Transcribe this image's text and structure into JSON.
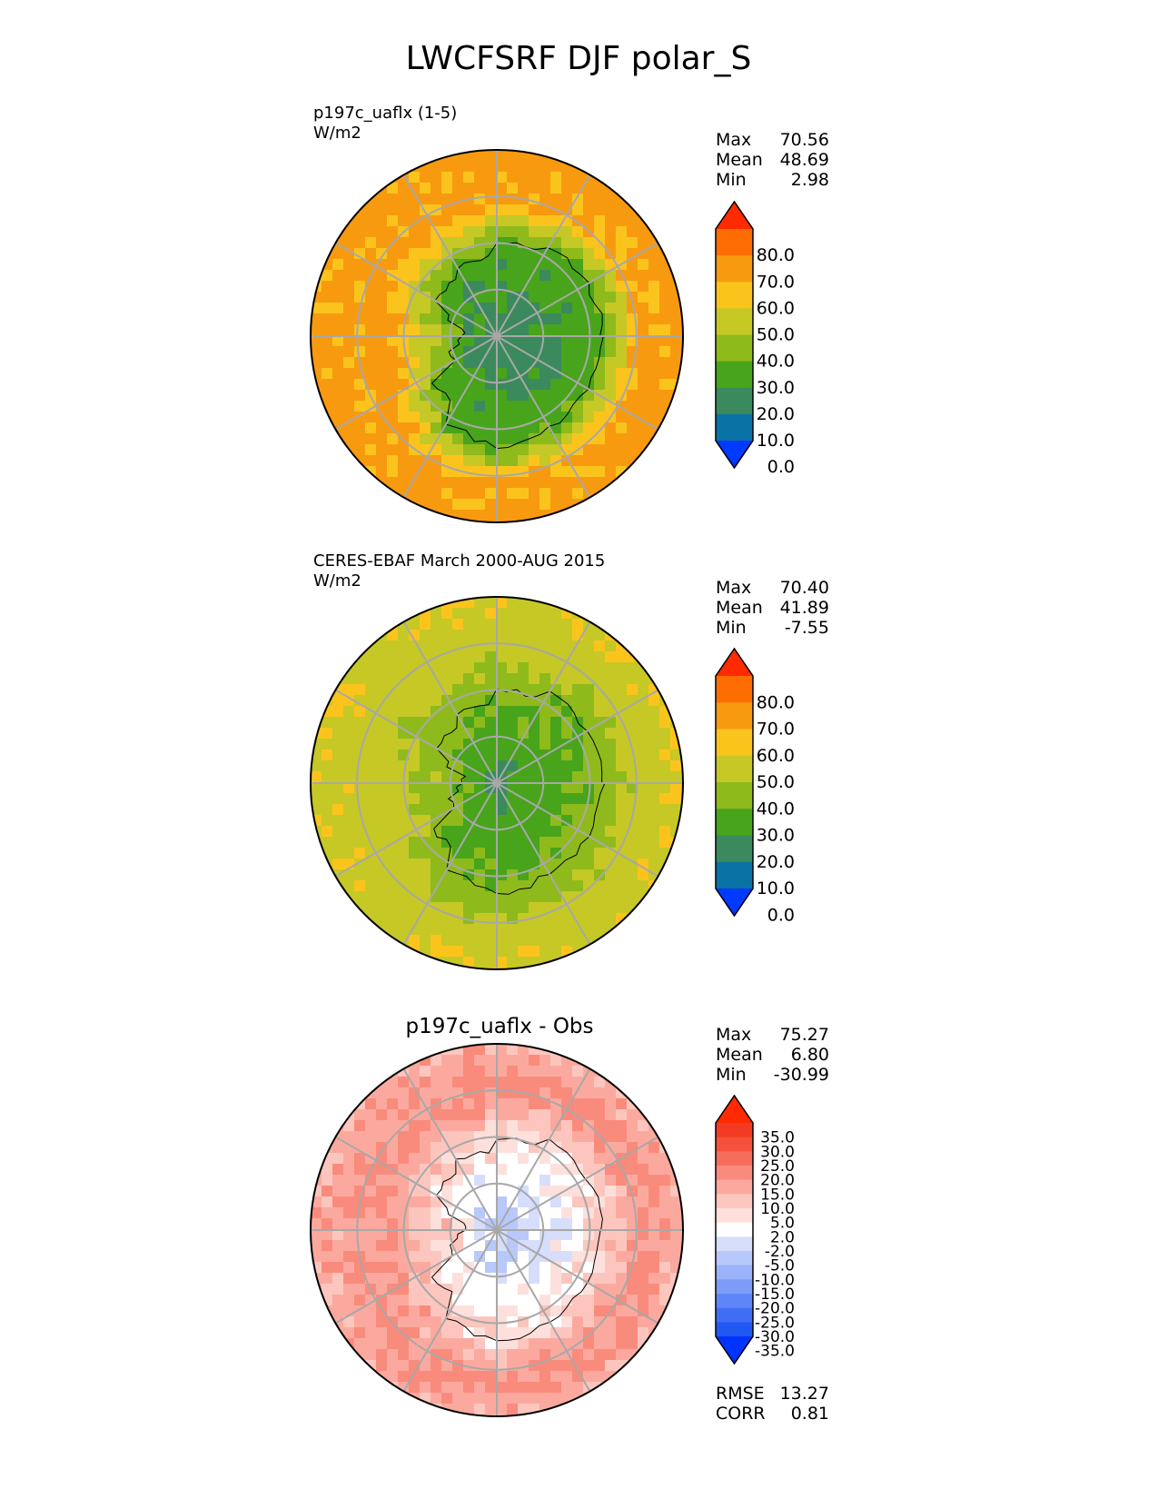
{
  "figure": {
    "title": "LWCFSRF DJF polar_S"
  },
  "chart_data": [
    {
      "type": "heatmap",
      "projection": "south-polar-stereographic",
      "title_left": "p197c_uaflx (1-5)",
      "units": "W/m2",
      "stats": [
        {
          "label": "Max",
          "value": "70.56"
        },
        {
          "label": "Mean",
          "value": "48.69"
        },
        {
          "label": "Min",
          "value": "2.98"
        }
      ],
      "colorbar": {
        "extend": "both",
        "levels": [
          -10,
          0,
          10,
          20,
          30,
          40,
          50,
          60,
          70,
          80,
          90
        ],
        "tick_labels": [
          "80.0",
          "70.0",
          "60.0",
          "50.0",
          "40.0",
          "30.0",
          "20.0",
          "10.0",
          "0.0"
        ],
        "colors": [
          "#0039ff",
          "#0b72a6",
          "#3b8a5d",
          "#48a41a",
          "#8fba1c",
          "#c6c826",
          "#fbc41c",
          "#f89a10",
          "#fd6d04",
          "#ff2a00"
        ]
      },
      "field": {
        "pole": 12,
        "coast": 27,
        "ocean": 62,
        "far": 64
      }
    },
    {
      "type": "heatmap",
      "projection": "south-polar-stereographic",
      "title_left": "CERES-EBAF March 2000-AUG 2015",
      "units": "W/m2",
      "stats": [
        {
          "label": "Max",
          "value": "70.40"
        },
        {
          "label": "Mean",
          "value": "41.89"
        },
        {
          "label": "Min",
          "value": "-7.55"
        }
      ],
      "colorbar": {
        "extend": "both",
        "levels": [
          -10,
          0,
          10,
          20,
          30,
          40,
          50,
          60,
          70,
          80,
          90
        ],
        "tick_labels": [
          "80.0",
          "70.0",
          "60.0",
          "50.0",
          "40.0",
          "30.0",
          "20.0",
          "10.0",
          "0.0"
        ],
        "colors": [
          "#0039ff",
          "#0b72a6",
          "#3b8a5d",
          "#48a41a",
          "#8fba1c",
          "#c6c826",
          "#fbc41c",
          "#f89a10",
          "#fd6d04",
          "#ff2a00"
        ]
      },
      "field": {
        "pole": 18,
        "coast": 33,
        "ocean": 45,
        "far": 55
      }
    },
    {
      "type": "heatmap",
      "projection": "south-polar-stereographic",
      "title_center": "p197c_uaflx - Obs",
      "stats": [
        {
          "label": "Max",
          "value": "75.27"
        },
        {
          "label": "Mean",
          "value": "6.80"
        },
        {
          "label": "Min",
          "value": "-30.99"
        }
      ],
      "colorbar": {
        "extend": "both",
        "levels": [
          -40,
          -35,
          -30,
          -25,
          -20,
          -15,
          -10,
          -5,
          -2,
          2,
          5,
          10,
          15,
          20,
          25,
          30,
          35,
          40
        ],
        "tick_labels": [
          "35.0",
          "30.0",
          "25.0",
          "20.0",
          "15.0",
          "10.0",
          "5.0",
          "2.0",
          "-2.0",
          "-5.0",
          "-10.0",
          "-15.0",
          "-20.0",
          "-25.0",
          "-30.0",
          "-35.0"
        ],
        "colors": [
          "#0033ff",
          "#2258f2",
          "#3f6ef5",
          "#5f86f7",
          "#7d9cf8",
          "#9cb2fa",
          "#b8c8fb",
          "#d6defc",
          "#ffffff",
          "#fde0dc",
          "#fcc6be",
          "#fba99e",
          "#f98b7c",
          "#f76d5b",
          "#f5513d",
          "#f33a22",
          "#ff2a00"
        ]
      },
      "field": {
        "pole": -6,
        "coast": 4,
        "ocean": 16,
        "far": 4
      },
      "bottom_stats": [
        {
          "label": "RMSE",
          "value": "13.27"
        },
        {
          "label": "CORR",
          "value": "0.81"
        }
      ]
    }
  ]
}
